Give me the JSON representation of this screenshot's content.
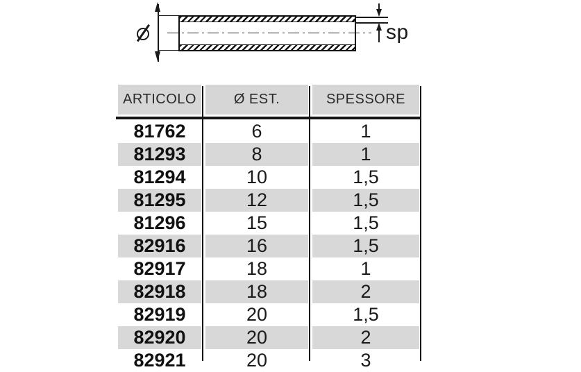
{
  "diagram": {
    "thickness_label": "sp",
    "diameter_symbol": "ø"
  },
  "table": {
    "columns": [
      {
        "key": "articolo",
        "label": "ARTICOLO"
      },
      {
        "key": "est",
        "label": "Ø EST."
      },
      {
        "key": "spessore",
        "label": "SPESSORE"
      }
    ],
    "rows": [
      [
        "81762",
        "6",
        "1"
      ],
      [
        "81293",
        "8",
        "1"
      ],
      [
        "81294",
        "10",
        "1,5"
      ],
      [
        "81295",
        "12",
        "1,5"
      ],
      [
        "81296",
        "15",
        "1,5"
      ],
      [
        "82916",
        "16",
        "1,5"
      ],
      [
        "82917",
        "18",
        "1"
      ],
      [
        "82918",
        "18",
        "2"
      ],
      [
        "82919",
        "20",
        "1,5"
      ],
      [
        "82920",
        "20",
        "2"
      ],
      [
        "82921",
        "20",
        "3"
      ]
    ]
  },
  "colors": {
    "stripe": "#d8d8d8",
    "header_bg": "#d6d6d6",
    "ink": "#1a1a1a"
  }
}
